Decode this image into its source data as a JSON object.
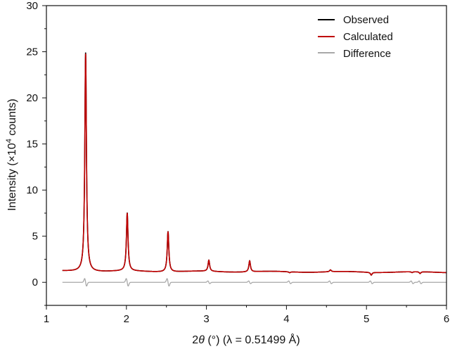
{
  "chart_data": {
    "type": "line",
    "xlabel_prefix": "2",
    "xlabel_theta": "θ",
    "xlabel_suffix": " (°) (λ = 0.51499 Å)",
    "ylabel_prefix": "Intensity (×10",
    "ylabel_exp": "4",
    "ylabel_suffix": " counts)",
    "xlim": [
      1,
      6
    ],
    "ylim": [
      -2.5,
      30
    ],
    "xticks": [
      1,
      2,
      3,
      4,
      5,
      6
    ],
    "yticks": [
      0,
      5,
      10,
      15,
      20,
      25,
      30
    ],
    "legend_position": "top-right",
    "background": 1.2,
    "peaks": [
      {
        "x": 1.49,
        "y": 25.0
      },
      {
        "x": 2.01,
        "y": 7.5
      },
      {
        "x": 2.52,
        "y": 5.6
      },
      {
        "x": 3.03,
        "y": 2.4
      },
      {
        "x": 3.54,
        "y": 2.4
      },
      {
        "x": 4.04,
        "y": 1.1
      },
      {
        "x": 4.55,
        "y": 1.4
      },
      {
        "x": 5.06,
        "y": 0.9
      },
      {
        "x": 5.57,
        "y": 1.1
      },
      {
        "x": 5.67,
        "y": 1.0
      }
    ],
    "series": [
      {
        "name": "Observed",
        "color": "#000000",
        "x_range": [
          1.2,
          6.0
        ]
      },
      {
        "name": "Calculated",
        "color": "#c00000",
        "x_range": [
          1.2,
          6.0
        ]
      },
      {
        "name": "Difference",
        "color": "#a8a8a8",
        "x_range": [
          1.2,
          6.0
        ]
      }
    ]
  }
}
